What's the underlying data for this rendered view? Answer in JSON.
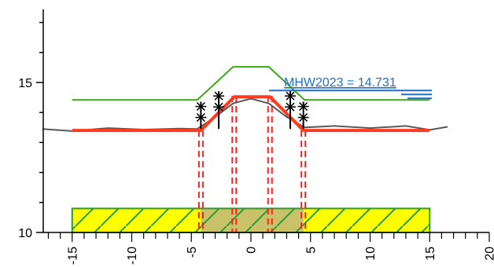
{
  "chart_data": {
    "type": "cross-section",
    "x_ticks": [
      "-15",
      "-10",
      "-5",
      "0",
      "5",
      "10",
      "15",
      "20"
    ],
    "y_ticks": [
      "10",
      "15"
    ],
    "annotation": "MHW2023 = 14.731",
    "mhw_level": 14.731,
    "ylim": [
      10,
      17.5
    ],
    "xlim": [
      -17.5,
      20.5
    ],
    "terrain_profile": [
      [
        -17.5,
        13.45
      ],
      [
        -15,
        13.38
      ],
      [
        -12,
        13.48
      ],
      [
        -9,
        13.43
      ],
      [
        -6,
        13.46
      ],
      [
        -4.5,
        13.45
      ],
      [
        -3,
        13.85
      ],
      [
        -1.5,
        14.3
      ],
      [
        0,
        14.46
      ],
      [
        1.5,
        14.3
      ],
      [
        3,
        13.85
      ],
      [
        4.5,
        13.5
      ],
      [
        7,
        13.55
      ],
      [
        10,
        13.48
      ],
      [
        13,
        13.55
      ],
      [
        15,
        13.42
      ],
      [
        16.5,
        13.52
      ]
    ],
    "dike_profile": [
      [
        -15,
        13.4
      ],
      [
        -4.2,
        13.4
      ],
      [
        -1.4,
        14.52
      ],
      [
        1.6,
        14.52
      ],
      [
        4.4,
        13.4
      ],
      [
        15,
        13.4
      ]
    ],
    "design_profile": [
      [
        -15,
        14.42
      ],
      [
        -4.5,
        14.42
      ],
      [
        -1.5,
        15.52
      ],
      [
        1.5,
        15.52
      ],
      [
        4.5,
        14.42
      ],
      [
        15,
        14.42
      ]
    ],
    "foundation_mat": {
      "x": [
        -15,
        15
      ],
      "y": [
        10,
        10.8
      ]
    },
    "section_lines_x": [
      -4.2,
      -1.4,
      1.6,
      4.4
    ],
    "colors": {
      "axis": "#000000",
      "terrain": "#595959",
      "dike": "#ff3b1f",
      "design": "#3aaa14",
      "mhw": "#1f6fd1",
      "mat_fill": "#ffff00",
      "mat_hatch": "#2e9b2e",
      "section": "#ff1f1f"
    },
    "icons": [
      "tree-icon",
      "tree-icon",
      "tree-icon",
      "tree-icon"
    ]
  }
}
